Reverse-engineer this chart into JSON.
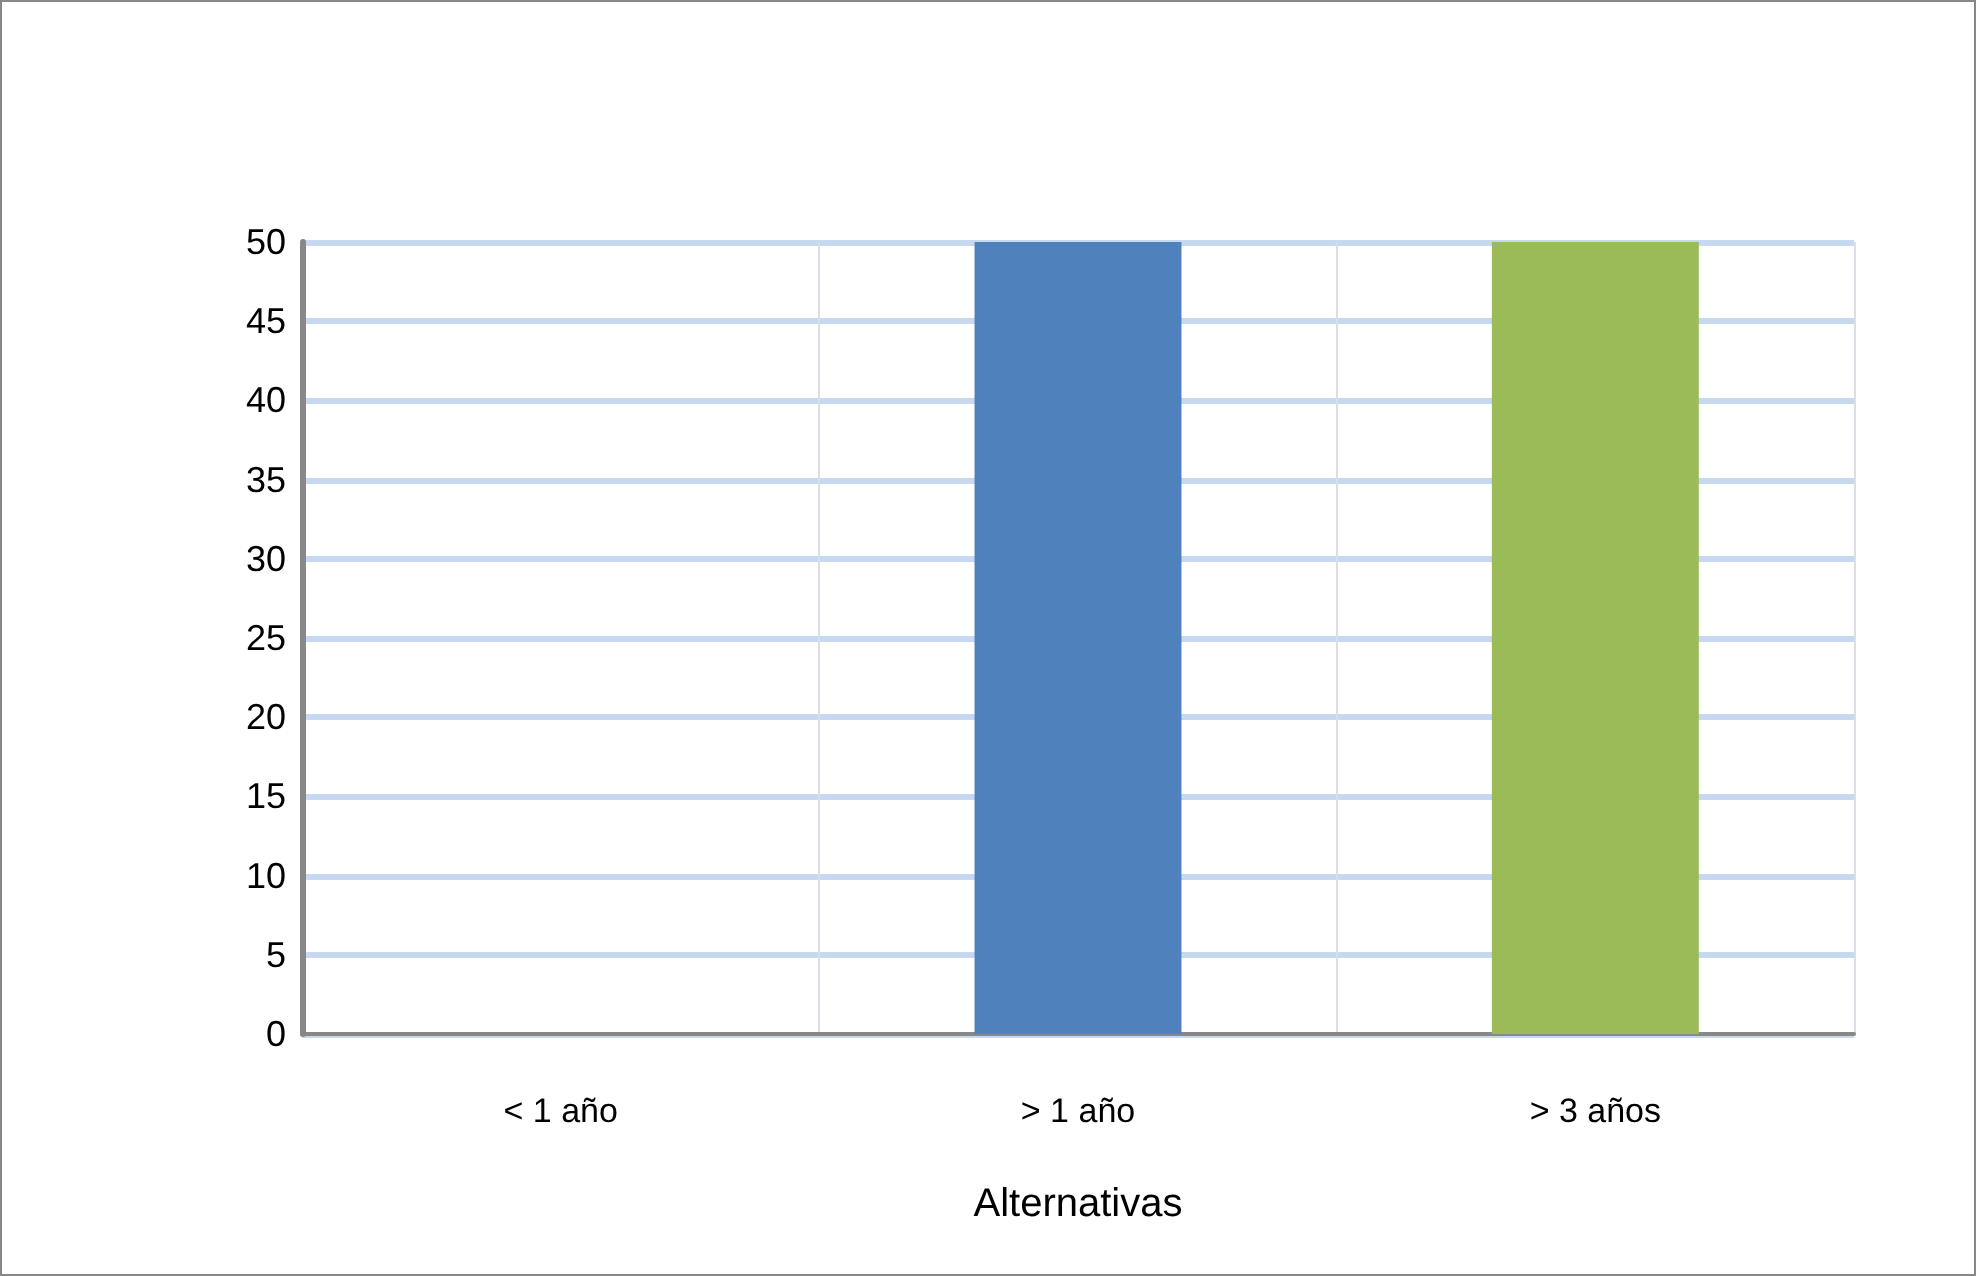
{
  "chart_data": {
    "type": "bar",
    "xlabel": "Alternativas",
    "categories": [
      "< 1 año",
      "> 1 año",
      "> 3 años"
    ],
    "values": [
      0,
      50,
      50
    ],
    "colors": [
      "#bfbfbf",
      "#4f81bd",
      "#9bbb59"
    ],
    "ylim": [
      0,
      50
    ],
    "yticks": [
      0,
      5,
      10,
      15,
      20,
      25,
      30,
      35,
      40,
      45,
      50
    ],
    "grid": true
  }
}
